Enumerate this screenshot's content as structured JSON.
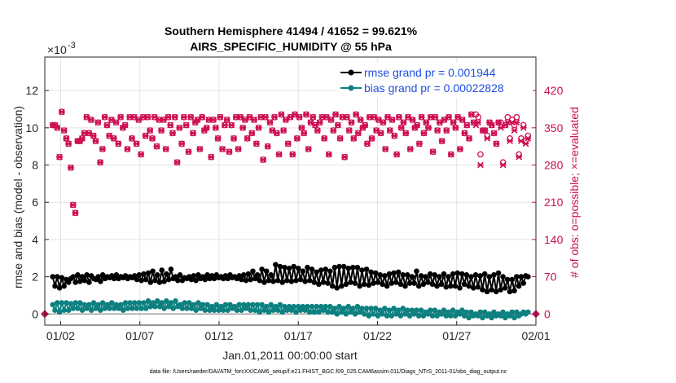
{
  "chart_data": {
    "type": "line",
    "title": [
      "Southern Hemisphere 41494 / 41652 = 99.621%",
      "AIRS_SPECIFIC_HUMIDITY @ 55 hPa"
    ],
    "ylabel": "rmse and bias (model - observation)",
    "y2label": "# of obs: o=possible; ×=evaluated",
    "xlabel": "Jan.01,2011 00:00:00 start",
    "exponent_label": "×10",
    "exponent_power": "-3",
    "footnote": "data file: /Users/raeder/DAI/ATM_forcXX/CAM6_setup/f.e21.FHIST_BGC.f09_025.CAM6assim.011/Diags_NTrS_2011-01/obs_diag_output.nc",
    "xlim": [
      0.5,
      31.5
    ],
    "ylim": [
      -0.0006,
      0.0138
    ],
    "y2lim": [
      -21,
      483
    ],
    "xticks": [
      1.5,
      6.5,
      11.5,
      16.5,
      21.5,
      26.5,
      31.5
    ],
    "xtick_labels": [
      "01/02",
      "01/07",
      "01/12",
      "01/17",
      "01/22",
      "01/27",
      "02/01"
    ],
    "yticks": [
      0,
      0.002,
      0.004,
      0.006,
      0.008,
      0.01,
      0.012
    ],
    "ytick_labels": [
      "0",
      "2",
      "4",
      "6",
      "8",
      "10",
      "12"
    ],
    "y2ticks": [
      0,
      70,
      140,
      210,
      280,
      350,
      420
    ],
    "y2tick_labels": [
      "0",
      "70",
      "140",
      "210",
      "280",
      "350",
      "420"
    ],
    "legend": {
      "location": "top-right",
      "entries": [
        "rmse grand pr = 0.001944",
        "bias grand pr = 0.00022828"
      ]
    },
    "grid": true,
    "colors": {
      "rmse": "#000000",
      "bias": "#0e8080",
      "obs": "#cc0e52",
      "legend_text": "#1f4fe0"
    },
    "series": [
      {
        "name": "rmse grand pr = 0.001944",
        "axis": "left",
        "marker": "filled-circle",
        "values": [
          0.002,
          0.0015,
          0.002,
          0.0014,
          0.00195,
          0.0015,
          0.00185,
          0.0017,
          0.0019,
          0.002,
          0.0017,
          0.0021,
          0.00175,
          0.002,
          0.0018,
          0.0021,
          0.0017,
          0.00205,
          0.0019,
          0.00185,
          0.002,
          0.00175,
          0.0021,
          0.0019,
          0.002,
          0.00195,
          0.00205,
          0.0019,
          0.0021,
          0.0019,
          0.002,
          0.00195,
          0.00205,
          0.0019,
          0.002,
          0.00195,
          0.00205,
          0.00185,
          0.0021,
          0.0018,
          0.00215,
          0.00185,
          0.0022,
          0.0017,
          0.0023,
          0.0018,
          0.0021,
          0.0017,
          0.00235,
          0.00175,
          0.00215,
          0.00185,
          0.0024,
          0.0019,
          0.002,
          0.0018,
          0.0021,
          0.0018,
          0.00195,
          0.0019,
          0.002,
          0.00185,
          0.00205,
          0.0018,
          0.0021,
          0.0019,
          0.002,
          0.00185,
          0.0021,
          0.0019,
          0.00205,
          0.0019,
          0.0021,
          0.00195,
          0.002,
          0.0019,
          0.00205,
          0.0019,
          0.0021,
          0.00195,
          0.002,
          0.0019,
          0.00205,
          0.00185,
          0.0021,
          0.0018,
          0.00215,
          0.00185,
          0.0023,
          0.0019,
          0.0021,
          0.0018,
          0.0024,
          0.0017,
          0.0023,
          0.0018,
          0.0021,
          0.00175,
          0.00265,
          0.0018,
          0.00255,
          0.0017,
          0.0025,
          0.0018,
          0.00245,
          0.00175,
          0.00255,
          0.0018,
          0.00245,
          0.00185,
          0.0023,
          0.00175,
          0.0025,
          0.0018,
          0.0024,
          0.0017,
          0.00225,
          0.0016,
          0.00235,
          0.0017,
          0.0024,
          0.00165,
          0.0023,
          0.0015,
          0.0025,
          0.0014,
          0.00255,
          0.0015,
          0.00255,
          0.0016,
          0.00245,
          0.0017,
          0.0025,
          0.00165,
          0.0025,
          0.0015,
          0.00235,
          0.0016,
          0.0024,
          0.00155,
          0.00225,
          0.00165,
          0.0022,
          0.0017,
          0.0021,
          0.0016,
          0.00205,
          0.0015,
          0.00215,
          0.00165,
          0.0022,
          0.0017,
          0.00225,
          0.0016,
          0.0021,
          0.0015,
          0.0021,
          0.00165,
          0.002,
          0.00165,
          0.0023,
          0.0015,
          0.00205,
          0.0016,
          0.002,
          0.0017,
          0.00215,
          0.0016,
          0.0021,
          0.0015,
          0.002,
          0.0016,
          0.00215,
          0.00145,
          0.002,
          0.0015,
          0.00215,
          0.0015,
          0.0022,
          0.0014,
          0.00215,
          0.0016,
          0.0021,
          0.0015,
          0.002,
          0.0014,
          0.0021,
          0.00145,
          0.00205,
          0.0013,
          0.00215,
          0.0012,
          0.002,
          0.0013,
          0.0021,
          0.0012,
          0.0022,
          0.0013,
          0.002,
          0.0014,
          0.00185,
          0.0012,
          0.00185,
          0.00125,
          0.002,
          0.0015,
          0.002,
          0.00165,
          0.00205,
          0.002
        ]
      },
      {
        "name": "bias grand pr = 0.00022828",
        "axis": "left",
        "marker": "filled-circle",
        "values": [
          0.0005,
          0.0002,
          0.0006,
          0.0001,
          0.0006,
          0.0002,
          0.0006,
          0.0002,
          0.00055,
          0.0003,
          0.0006,
          0.0003,
          0.0006,
          0.0002,
          0.0005,
          0.0003,
          0.0005,
          0.0002,
          0.0006,
          0.0003,
          0.0005,
          0.0002,
          0.0006,
          0.0003,
          0.0005,
          0.0003,
          0.0006,
          0.0003,
          0.0005,
          0.0003,
          0.0005,
          0.0002,
          0.0006,
          0.0003,
          0.0006,
          0.0003,
          0.0006,
          0.0003,
          0.0006,
          0.0003,
          0.0006,
          0.0003,
          0.0007,
          0.0004,
          0.0006,
          0.0004,
          0.0007,
          0.0004,
          0.0006,
          0.0003,
          0.0007,
          0.0004,
          0.0006,
          0.0003,
          0.0007,
          0.0004,
          0.0005,
          0.0003,
          0.0006,
          0.0003,
          0.0006,
          0.0003,
          0.0005,
          0.0002,
          0.0006,
          0.0003,
          0.0005,
          0.0002,
          0.0005,
          0.0002,
          0.0004,
          0.0002,
          0.0005,
          0.0002,
          0.0004,
          0.0002,
          0.0005,
          0.0002,
          0.0005,
          0.0003,
          0.0004,
          0.0002,
          0.0005,
          0.0002,
          0.0005,
          0.0003,
          0.0005,
          0.0002,
          0.0005,
          0.0002,
          0.0005,
          0.0001,
          0.0005,
          0.0002,
          0.0004,
          0.0001,
          0.0005,
          0.0002,
          0.0004,
          0.0002,
          0.0005,
          0.0001,
          0.0004,
          0.0002,
          0.0004,
          0.0002,
          0.0004,
          0.0001,
          0.0004,
          0.0002,
          0.0004,
          0.0002,
          0.0004,
          0.0001,
          0.0004,
          0.0001,
          0.0004,
          0.0001,
          0.0004,
          0.0002,
          0.0004,
          0.0001,
          0.0004,
          0.0001,
          0.0003,
          0.0,
          0.0004,
          0.0001,
          0.0003,
          0.0,
          0.0004,
          0.0001,
          0.0003,
          0.0,
          0.0004,
          0.0001,
          0.0003,
          0.0,
          0.0003,
          -0.0001,
          0.0003,
          0.0,
          0.0003,
          -0.0001,
          0.0002,
          0.0,
          0.0003,
          -0.0001,
          0.0002,
          -0.0001,
          0.0003,
          0.0,
          0.0002,
          -0.0001,
          0.0003,
          0.0,
          0.0002,
          -0.0001,
          0.0002,
          0.0,
          0.0002,
          -0.0001,
          0.0002,
          -0.0001,
          0.0001,
          0.0,
          0.0002,
          -0.0001,
          0.0002,
          -0.0001,
          0.0001,
          0.0,
          0.0002,
          -0.0001,
          0.0001,
          -0.0001,
          0.0002,
          -0.0001,
          0.0001,
          0.0,
          0.0002,
          -0.0001,
          0.0001,
          -0.0002,
          0.0001,
          -0.0001,
          0.0,
          -0.0001,
          0.0001,
          -0.0002,
          0.0001,
          -0.0001,
          0.0,
          -0.0002,
          0.0001,
          -0.0001,
          0.0,
          -0.0001,
          0.0001,
          -0.0002,
          0.0,
          -0.0001,
          0.0001,
          -0.0002,
          0.0001,
          -0.0001,
          0.0,
          0.0001,
          0.0,
          0.0001
        ]
      },
      {
        "name": "",
        "axis": "right",
        "marker": "o",
        "values": [
          355,
          355,
          350,
          295,
          380,
          345,
          330,
          320,
          275,
          205,
          190,
          325,
          325,
          330,
          340,
          370,
          340,
          365,
          335,
          325,
          360,
          285,
          310,
          370,
          355,
          335,
          365,
          330,
          360,
          320,
          370,
          350,
          355,
          310,
          370,
          330,
          370,
          320,
          365,
          300,
          370,
          335,
          370,
          345,
          330,
          370,
          315,
          365,
          345,
          365,
          310,
          370,
          355,
          340,
          370,
          285,
          350,
          320,
          370,
          355,
          305,
          370,
          340,
          360,
          365,
          310,
          370,
          345,
          350,
          365,
          295,
          365,
          350,
          330,
          370,
          310,
          355,
          365,
          305,
          355,
          330,
          370,
          310,
          370,
          350,
          365,
          330,
          370,
          340,
          365,
          320,
          350,
          370,
          290,
          370,
          315,
          360,
          345,
          370,
          340,
          300,
          375,
          345,
          365,
          320,
          370,
          300,
          375,
          330,
          370,
          350,
          340,
          375,
          310,
          360,
          370,
          355,
          345,
          360,
          370,
          330,
          370,
          300,
          365,
          345,
          375,
          355,
          330,
          370,
          295,
          370,
          345,
          360,
          330,
          375,
          340,
          365,
          350,
          355,
          320,
          370,
          330,
          370,
          345,
          365,
          340,
          360,
          310,
          370,
          345,
          365,
          335,
          300,
          370,
          350,
          360,
          340,
          370,
          310,
          365,
          350,
          355,
          320,
          370,
          340,
          360,
          350,
          370,
          305,
          370,
          345,
          360,
          325,
          365,
          345,
          370,
          300,
          360,
          350,
          370,
          310,
          365,
          340,
          355,
          330,
          375,
          360,
          375,
          370,
          300,
          345,
          345,
          335,
          360,
          355,
          340,
          320,
          360,
          360,
          285,
          355,
          370,
          330,
          365,
          355,
          370,
          300,
          330,
          355,
          325,
          335
        ]
      },
      {
        "name": "",
        "axis": "right",
        "marker": "x",
        "values": [
          355,
          355,
          350,
          295,
          380,
          345,
          330,
          320,
          275,
          205,
          190,
          325,
          325,
          330,
          340,
          370,
          340,
          365,
          335,
          325,
          360,
          285,
          310,
          370,
          355,
          335,
          365,
          330,
          360,
          320,
          370,
          350,
          355,
          310,
          370,
          330,
          370,
          320,
          365,
          300,
          370,
          335,
          370,
          345,
          330,
          370,
          315,
          365,
          345,
          365,
          310,
          370,
          355,
          340,
          370,
          285,
          350,
          320,
          370,
          355,
          305,
          370,
          340,
          360,
          365,
          310,
          370,
          345,
          350,
          365,
          295,
          365,
          350,
          330,
          370,
          310,
          355,
          365,
          305,
          355,
          330,
          370,
          310,
          370,
          350,
          365,
          330,
          370,
          340,
          365,
          320,
          350,
          370,
          290,
          370,
          315,
          360,
          345,
          370,
          340,
          300,
          375,
          345,
          365,
          320,
          370,
          300,
          375,
          330,
          370,
          350,
          340,
          375,
          310,
          360,
          370,
          355,
          345,
          360,
          370,
          330,
          370,
          300,
          365,
          345,
          375,
          355,
          330,
          370,
          295,
          370,
          345,
          360,
          330,
          375,
          340,
          365,
          350,
          355,
          320,
          370,
          330,
          370,
          345,
          365,
          340,
          360,
          310,
          370,
          345,
          365,
          335,
          300,
          370,
          350,
          360,
          340,
          370,
          310,
          365,
          350,
          355,
          320,
          370,
          340,
          360,
          350,
          370,
          305,
          370,
          345,
          360,
          325,
          365,
          345,
          370,
          300,
          360,
          350,
          370,
          310,
          365,
          340,
          355,
          330,
          375,
          360,
          355,
          360,
          280,
          345,
          345,
          330,
          360,
          355,
          340,
          320,
          360,
          350,
          280,
          355,
          360,
          325,
          360,
          345,
          360,
          295,
          325,
          350,
          320,
          330
        ]
      }
    ]
  }
}
